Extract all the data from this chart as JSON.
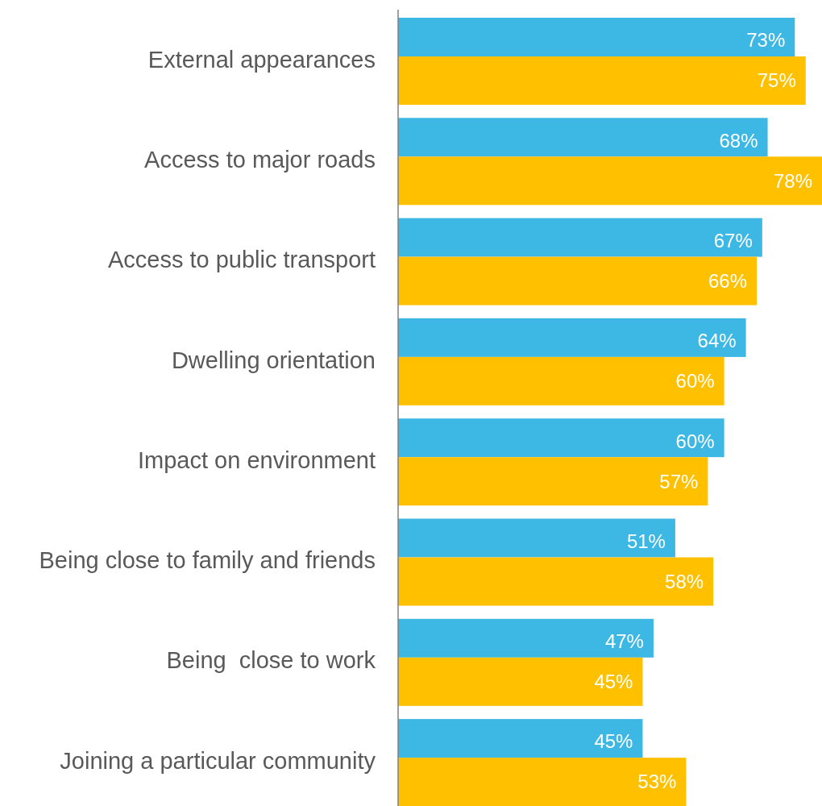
{
  "chart_data": {
    "type": "bar",
    "orientation": "horizontal",
    "categories": [
      "External appearances",
      "Access to major roads",
      "Access to public transport",
      "Dwelling orientation",
      "Impact on environment",
      "Being close to family and friends",
      "Being  close to work",
      "Joining a particular community"
    ],
    "series": [
      {
        "color": "#3db8e5",
        "values": [
          73,
          68,
          67,
          64,
          60,
          51,
          47,
          45
        ],
        "value_labels": [
          "73%",
          "68%",
          "67%",
          "64%",
          "60%",
          "51%",
          "47%",
          "45%"
        ]
      },
      {
        "color": "#ffc000",
        "values": [
          75,
          78,
          66,
          60,
          57,
          58,
          45,
          53
        ],
        "value_labels": [
          "75%",
          "78%",
          "66%",
          "60%",
          "57%",
          "58%",
          "45%",
          "53%"
        ]
      }
    ],
    "xlim": [
      0,
      78
    ],
    "tick_labels": "y"
  }
}
